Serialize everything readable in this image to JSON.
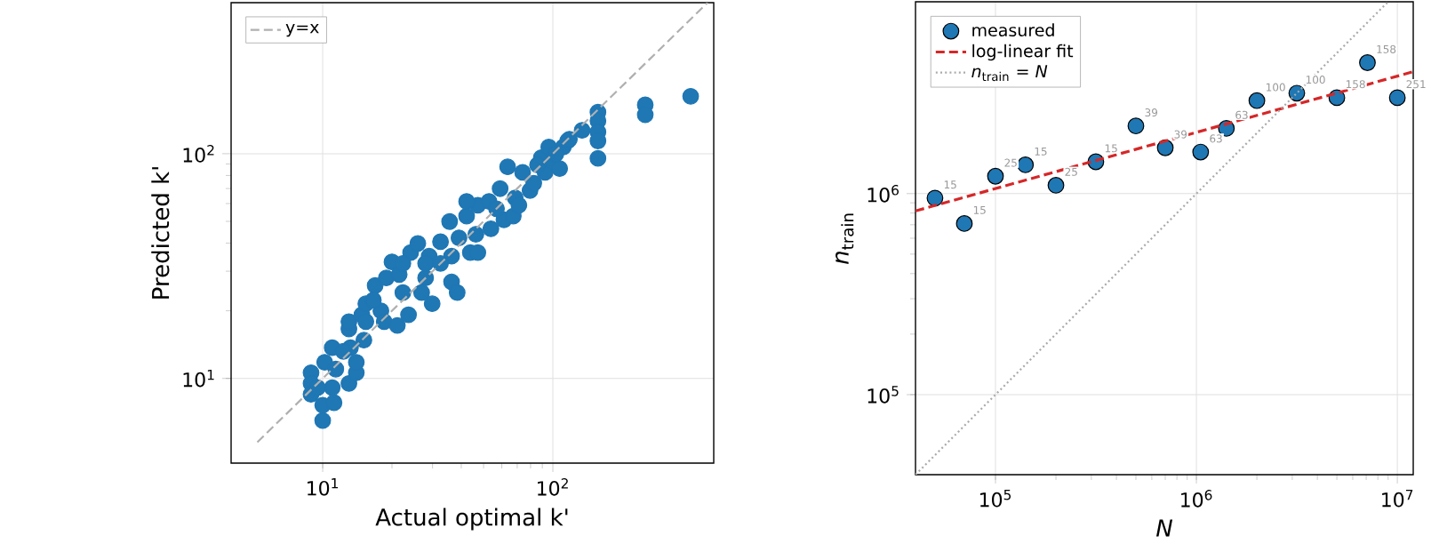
{
  "chart_data": [
    {
      "type": "scatter",
      "xlabel": "Actual optimal k'",
      "ylabel": "Predicted k'",
      "log": "xy",
      "grid": true,
      "legend": "top left",
      "xlim": [
        4,
        500
      ],
      "ylim": [
        4.2,
        470
      ],
      "xticks": [
        {
          "value": 10,
          "label": "10$^{1}$"
        },
        {
          "value": 100,
          "label": "10$^{2}$"
        }
      ],
      "yticks": [
        {
          "value": 10,
          "label": "10$^{1}$"
        },
        {
          "value": 100,
          "label": "10$^{2}$"
        }
      ],
      "series": [
        {
          "color": "#1f77b4",
          "x": [
            8.9,
            8.9,
            8.9,
            10,
            10,
            10.2,
            11.0,
            11.2,
            11.0,
            13.0,
            14.0,
            14.0,
            13.0,
            13.0,
            13.2,
            14.8,
            15.4,
            15.1,
            16.9,
            17.9,
            18.5,
            18.9,
            20.0,
            21.1,
            21.5,
            22.3,
            23.6,
            24.1,
            25.9,
            26.9,
            28.0,
            29.9,
            29.0,
            32.5,
            35.6,
            36.3,
            36.3,
            38.4,
            39.1,
            42.2,
            43.8,
            47.2,
            46.3,
            47.2,
            53.8,
            52.8,
            59.0,
            61.3,
            67.3,
            63.6,
            68.6,
            73.9,
            79.6,
            82.6,
            89.1,
            92.5,
            96.0,
            99.6,
            107,
            111,
            116,
            118,
            134,
            157,
            157,
            157,
            157,
            157,
            252,
            252,
            397,
            42.2,
            56.9,
            71.2,
            85.8,
            16.6,
            22.3,
            15.4,
            12.3,
            11.4,
            9.5,
            28.0,
            32.5,
            103
          ],
          "values": [
            10.6,
            9.5,
            8.5,
            6.5,
            7.6,
            11.8,
            13.7,
            7.8,
            9.1,
            9.5,
            10.6,
            11.8,
            16.6,
            17.9,
            13.7,
            19.2,
            21.5,
            14.8,
            25.9,
            20.0,
            17.9,
            28.0,
            33.0,
            17.2,
            29.0,
            24.1,
            19.2,
            36.3,
            39.9,
            24.1,
            28.0,
            21.5,
            35.0,
            40.6,
            49.9,
            35.0,
            26.9,
            24.1,
            42.2,
            52.8,
            36.3,
            36.3,
            43.8,
            59.0,
            46.3,
            61.3,
            69.9,
            50.8,
            52.8,
            87.4,
            63.6,
            82.6,
            68.6,
            73.9,
            96.0,
            82.6,
            107,
            92.5,
            85.8,
            107,
            114,
            116,
            127,
            153,
            140,
            125,
            114,
            95.3,
            165,
            149,
            180,
            61.3,
            56.9,
            59.0,
            89.1,
            22.3,
            32.5,
            17.9,
            13.2,
            11.0,
            9.1,
            32.5,
            32.5,
            99.6
          ]
        },
        {
          "name": "y=x",
          "type": "line",
          "color": "#b0b0b0",
          "line_style": "dashed",
          "x": [
            5.2,
            470
          ],
          "values": [
            5.2,
            470
          ]
        }
      ]
    },
    {
      "type": "scatter",
      "xlabel": "*N*",
      "ylabel": "*n*$_{train}$",
      "log": "xy",
      "grid": true,
      "legend": "top left",
      "xlim": [
        40000,
        12000000
      ],
      "ylim": [
        40000,
        9000000
      ],
      "xticks": [
        {
          "value": 100000,
          "label": "10$^{5}$"
        },
        {
          "value": 1000000,
          "label": "10$^{6}$"
        },
        {
          "value": 10000000,
          "label": "10$^{7}$"
        }
      ],
      "yticks": [
        {
          "value": 100000,
          "label": "10$^{5}$"
        },
        {
          "value": 1000000,
          "label": "10$^{6}$"
        }
      ],
      "series": [
        {
          "name": "measured",
          "color": "#1f77b4",
          "x": [
            50000,
            70000,
            100000,
            141000,
            200000,
            316000,
            500000,
            700000,
            1050000,
            1410000,
            2000000,
            3160000,
            5000000,
            7100000,
            10000000
          ],
          "values": [
            950000,
            710000,
            1220000,
            1390000,
            1100000,
            1440000,
            2170000,
            1690000,
            1610000,
            2110000,
            2900000,
            3160000,
            3000000,
            4480000,
            3000000
          ]
        },
        {
          "name": "log-linear fit",
          "type": "line",
          "color": "#d62728",
          "line_style": "dashed",
          "x": [
            40000,
            12000000
          ],
          "values": [
            820000,
            4040000
          ]
        },
        {
          "name": "*n*$_{train}$ = *N*",
          "type": "line",
          "color": "#aaaaaa",
          "line_style": "dotted",
          "x": [
            40000,
            9000000
          ],
          "values": [
            40000,
            9000000
          ]
        }
      ],
      "annotations": [
        {
          "text": "15",
          "x": 50000,
          "y": 950000
        },
        {
          "text": "15",
          "x": 70000,
          "y": 710000
        },
        {
          "text": "25",
          "x": 100000,
          "y": 1220000
        },
        {
          "text": "15",
          "x": 141000,
          "y": 1390000
        },
        {
          "text": "25",
          "x": 200000,
          "y": 1100000
        },
        {
          "text": "15",
          "x": 316000,
          "y": 1440000
        },
        {
          "text": "39",
          "x": 500000,
          "y": 2170000
        },
        {
          "text": "39",
          "x": 700000,
          "y": 1690000
        },
        {
          "text": "63",
          "x": 1050000,
          "y": 1610000
        },
        {
          "text": "63",
          "x": 1410000,
          "y": 2110000
        },
        {
          "text": "100",
          "x": 2000000,
          "y": 2900000
        },
        {
          "text": "100",
          "x": 3160000,
          "y": 3160000
        },
        {
          "text": "158",
          "x": 5000000,
          "y": 3000000
        },
        {
          "text": "158",
          "x": 7100000,
          "y": 4480000
        },
        {
          "text": "251",
          "x": 10000000,
          "y": 3000000
        }
      ]
    }
  ]
}
